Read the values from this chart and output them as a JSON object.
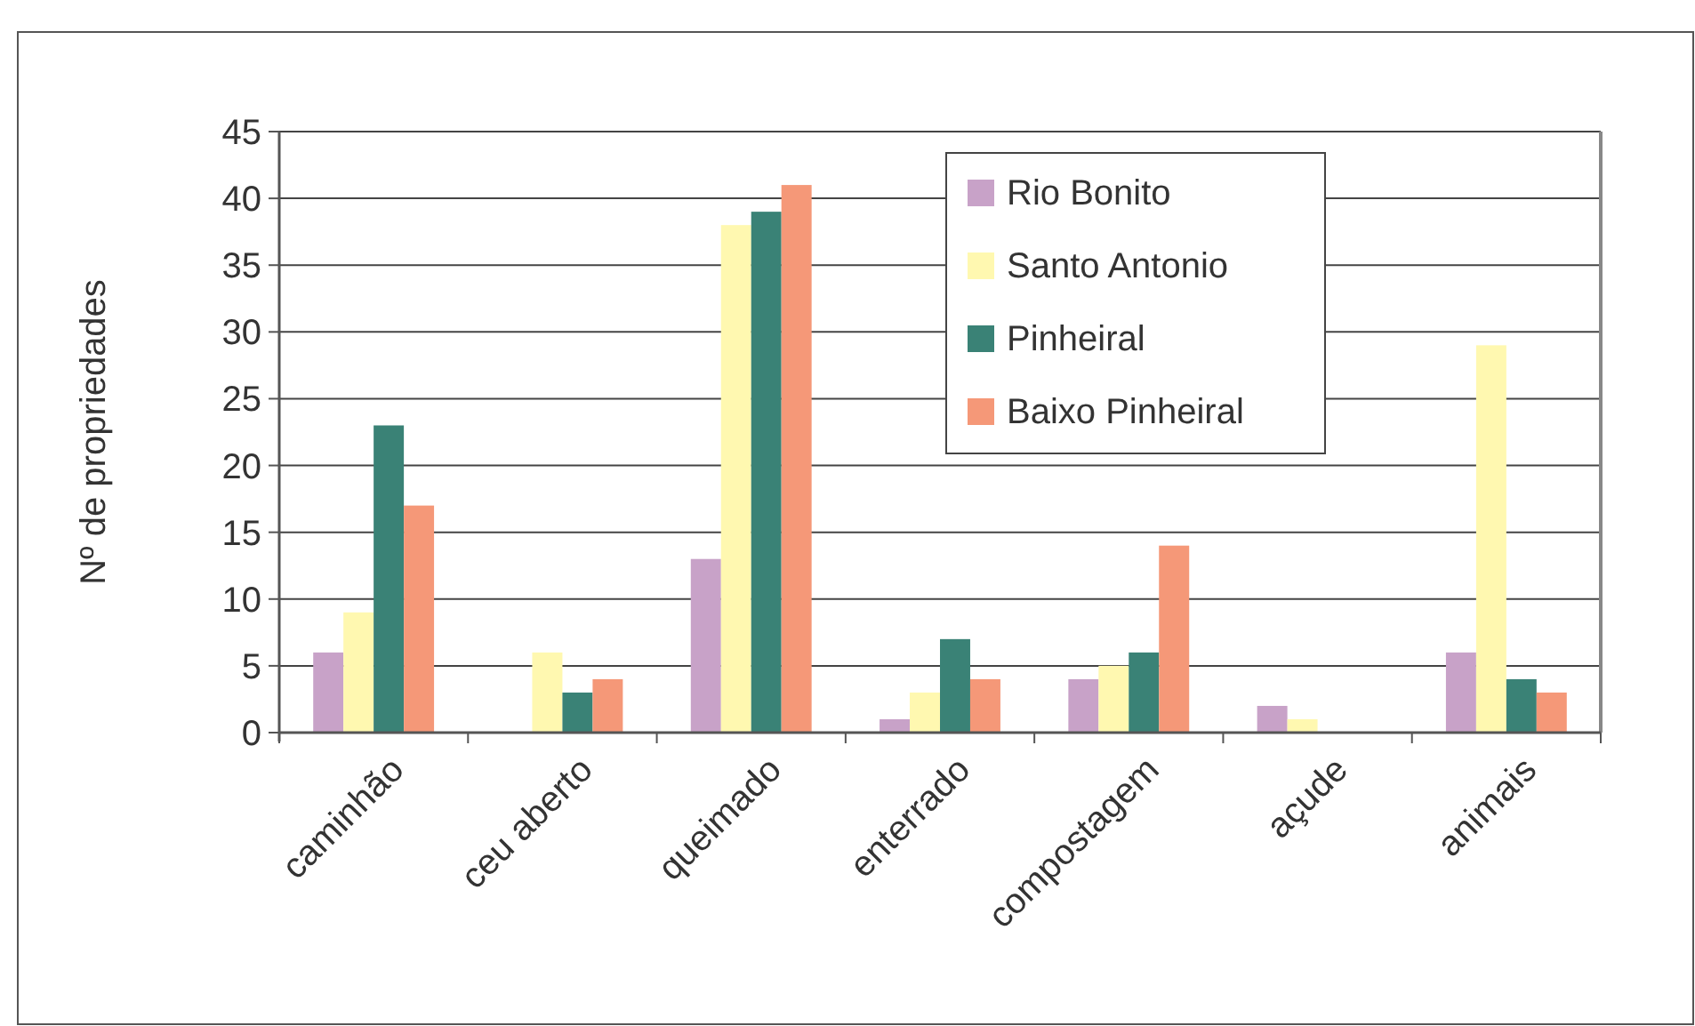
{
  "chart_data": {
    "type": "bar",
    "ylabel": "Nº de propriedades",
    "categories": [
      "caminhão",
      "ceu aberto",
      "queimado",
      "enterrado",
      "compostagem",
      "açude",
      "animais"
    ],
    "series": [
      {
        "name": "Rio Bonito",
        "color": "#c8a2c8",
        "values": [
          6,
          0,
          13,
          1,
          4,
          2,
          6
        ]
      },
      {
        "name": "Santo Antonio",
        "color": "#fff8b0",
        "values": [
          9,
          6,
          38,
          3,
          5,
          1,
          29
        ]
      },
      {
        "name": "Pinheiral",
        "color": "#3a8276",
        "values": [
          23,
          3,
          39,
          7,
          6,
          0,
          4
        ]
      },
      {
        "name": "Baixo Pinheiral",
        "color": "#f59878",
        "values": [
          17,
          4,
          41,
          4,
          14,
          0,
          3
        ]
      }
    ],
    "ylim": [
      0,
      45
    ],
    "yticks": [
      0,
      5,
      10,
      15,
      20,
      25,
      30,
      35,
      40,
      45
    ],
    "grid": "y",
    "legend": "top right"
  }
}
